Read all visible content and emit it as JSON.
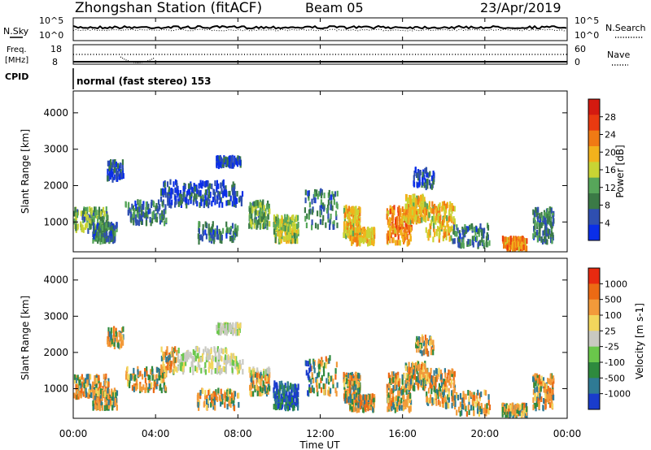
{
  "header": {
    "title": "Zhongshan Station (fitACF)",
    "beam": "Beam 05",
    "date": "23/Apr/2019"
  },
  "noise_panel": {
    "left_label": "N.Sky",
    "right_label": "N.Search",
    "left_ticks": [
      "10^5",
      "10^0"
    ],
    "right_ticks": [
      "10^5",
      "10^0"
    ]
  },
  "freq_panel": {
    "label_line1": "Freq.",
    "label_line2": "[MHz]",
    "right_label": "Nave",
    "left_ticks": [
      "18",
      "8"
    ],
    "right_ticks": [
      "60",
      "0"
    ],
    "cpid_label": "CPID",
    "cpid_text": "normal (fast stereo) 153"
  },
  "chart_data": [
    {
      "type": "heatmap",
      "name": "power",
      "ylabel": "Slant Range [km]",
      "ylim": [
        180,
        4600
      ],
      "y_ticks": [
        "1000",
        "2000",
        "3000",
        "4000"
      ],
      "colorbar_label": "Power [dB]",
      "colorbar_ticks": [
        "28",
        "24",
        "20",
        "16",
        "12",
        "8",
        "4"
      ],
      "colorscale": [
        "#0a2ee8",
        "#2f4fb0",
        "#3b7a46",
        "#57a65a",
        "#c8d434",
        "#f2b21c",
        "#f07a14",
        "#e93a10",
        "#d41a10"
      ]
    },
    {
      "type": "heatmap",
      "name": "velocity",
      "ylabel": "Slant Range [km]",
      "ylim": [
        180,
        4600
      ],
      "y_ticks": [
        "1000",
        "2000",
        "3000",
        "4000"
      ],
      "colorbar_label": "Velocity [m s-1]",
      "colorbar_ticks": [
        "1000",
        "500",
        "100",
        "25",
        "-25",
        "-100",
        "-500",
        "-1000"
      ],
      "colorscale": [
        "#1a3ccc",
        "#2f7a94",
        "#2e8a3e",
        "#6ac74b",
        "#c9c9c1",
        "#f2d65c",
        "#f29a3a",
        "#ec6a14",
        "#e82a10"
      ]
    }
  ],
  "x_axis": {
    "label": "Time UT",
    "ticks": [
      "00:00",
      "04:00",
      "08:00",
      "12:00",
      "16:00",
      "20:00",
      "00:00"
    ]
  }
}
